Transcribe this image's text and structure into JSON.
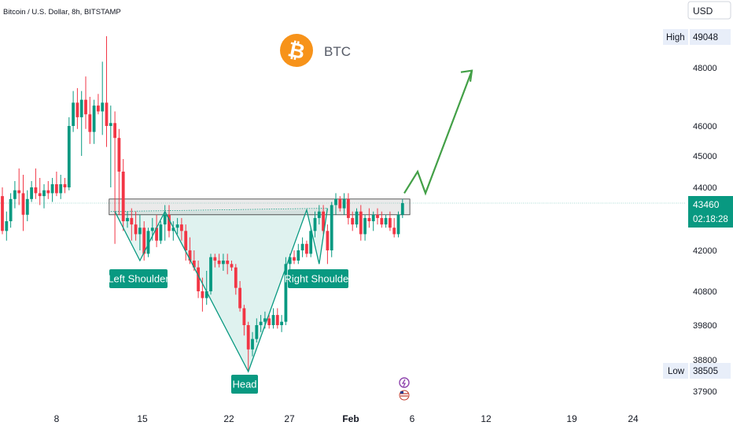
{
  "chart_data": {
    "type": "candlestick",
    "title": "Bitcoin / U.S. Dollar, 8h, BITSTAMP",
    "symbol": "BTC",
    "currency": "USD",
    "y_ticks": [
      48000,
      46000,
      45000,
      44000,
      42000,
      40800,
      39800,
      38800,
      37900
    ],
    "x_ticks": [
      "8",
      "15",
      "22",
      "27",
      "Feb",
      "6",
      "12",
      "19",
      "24"
    ],
    "high": {
      "label": "High",
      "value": "49048"
    },
    "low": {
      "label": "Low",
      "value": "38505"
    },
    "last_price": "43460",
    "countdown": "02:18:28",
    "pattern_labels": {
      "left": "Left Shoulder",
      "head": "Head",
      "right": "Right Shoulder"
    },
    "colors": {
      "up": "#089981",
      "down": "#f23645",
      "accent": "#43a047",
      "bitcoin": "#f7931a",
      "label_bg": "#089981"
    },
    "candles": [
      [
        43700,
        44000,
        42500,
        42600
      ],
      [
        42600,
        43200,
        42300,
        42900
      ],
      [
        42900,
        43800,
        42700,
        43600
      ],
      [
        43600,
        44200,
        43300,
        43900
      ],
      [
        43900,
        44600,
        43400,
        43800
      ],
      [
        43800,
        44400,
        42600,
        43100
      ],
      [
        43100,
        43900,
        42900,
        43600
      ],
      [
        43600,
        44200,
        43500,
        44000
      ],
      [
        44000,
        44600,
        43600,
        43800
      ],
      [
        43800,
        44300,
        43400,
        43700
      ],
      [
        43700,
        44100,
        43300,
        43900
      ],
      [
        43900,
        44200,
        43600,
        43800
      ],
      [
        43800,
        44300,
        43500,
        44100
      ],
      [
        44100,
        44500,
        43700,
        43800
      ],
      [
        43800,
        44400,
        43600,
        44100
      ],
      [
        44100,
        44300,
        43800,
        44000
      ],
      [
        44000,
        46300,
        43900,
        46000
      ],
      [
        46000,
        47200,
        45800,
        46800
      ],
      [
        46800,
        47300,
        45900,
        46300
      ],
      [
        46300,
        47200,
        45000,
        46900
      ],
      [
        46900,
        47700,
        45900,
        46400
      ],
      [
        46400,
        47000,
        45400,
        45800
      ],
      [
        45800,
        46900,
        45400,
        46700
      ],
      [
        46700,
        47100,
        46400,
        46500
      ],
      [
        46500,
        48200,
        45700,
        46800
      ],
      [
        46800,
        49048,
        45300,
        46000
      ],
      [
        46000,
        46700,
        44000,
        46100
      ],
      [
        46100,
        46500,
        42200,
        45600
      ],
      [
        45600,
        45900,
        43100,
        44500
      ],
      [
        44500,
        44900,
        42600,
        42900
      ],
      [
        42900,
        43200,
        42700,
        43000
      ],
      [
        43000,
        43300,
        42300,
        42800
      ],
      [
        42800,
        43200,
        42300,
        42500
      ],
      [
        42500,
        43100,
        42000,
        42700
      ],
      [
        42700,
        42900,
        41700,
        41900
      ],
      [
        41900,
        42700,
        41800,
        42600
      ],
      [
        42600,
        43000,
        42300,
        42700
      ],
      [
        42700,
        43100,
        42100,
        42300
      ],
      [
        42300,
        42900,
        42200,
        42800
      ],
      [
        42800,
        43400,
        42300,
        43100
      ],
      [
        43100,
        43400,
        42400,
        42600
      ],
      [
        42600,
        42900,
        42300,
        42700
      ],
      [
        42700,
        43000,
        42500,
        42800
      ],
      [
        42800,
        43000,
        42300,
        42600
      ],
      [
        42600,
        42800,
        41700,
        42000
      ],
      [
        42000,
        42400,
        41600,
        41700
      ],
      [
        41700,
        42000,
        41400,
        41500
      ],
      [
        41500,
        41700,
        40600,
        40800
      ],
      [
        40800,
        41200,
        40200,
        40600
      ],
      [
        40600,
        41400,
        40400,
        40800
      ],
      [
        40800,
        41900,
        40700,
        41800
      ],
      [
        41800,
        41900,
        41500,
        41700
      ],
      [
        41700,
        41900,
        41500,
        41600
      ],
      [
        41600,
        41900,
        41400,
        41700
      ],
      [
        41700,
        41900,
        41300,
        41600
      ],
      [
        41600,
        41700,
        41400,
        41500
      ],
      [
        41500,
        41600,
        40700,
        40900
      ],
      [
        40900,
        41100,
        40200,
        40300
      ],
      [
        40300,
        40400,
        39500,
        39800
      ],
      [
        39800,
        39900,
        38505,
        39100
      ],
      [
        39100,
        39600,
        38900,
        39400
      ],
      [
        39400,
        40000,
        39300,
        39800
      ],
      [
        39800,
        40100,
        39600,
        39900
      ],
      [
        39900,
        40200,
        39700,
        40000
      ],
      [
        40000,
        40100,
        39700,
        39800
      ],
      [
        39800,
        40300,
        39700,
        40100
      ],
      [
        40100,
        40300,
        39700,
        39800
      ],
      [
        39800,
        40100,
        39600,
        39900
      ],
      [
        39900,
        41800,
        39800,
        41600
      ],
      [
        41600,
        41900,
        41300,
        41800
      ],
      [
        41800,
        42000,
        41600,
        41700
      ],
      [
        41700,
        42200,
        41600,
        42000
      ],
      [
        42000,
        42400,
        41800,
        42200
      ],
      [
        42200,
        42300,
        41800,
        41900
      ],
      [
        41900,
        42700,
        41800,
        42600
      ],
      [
        42600,
        43200,
        42400,
        43000
      ],
      [
        43000,
        43400,
        42800,
        43200
      ],
      [
        43200,
        43400,
        42500,
        42600
      ],
      [
        42600,
        42800,
        41600,
        42000
      ],
      [
        42000,
        43500,
        41800,
        43400
      ],
      [
        43400,
        43800,
        43100,
        43600
      ],
      [
        43600,
        43700,
        43200,
        43300
      ],
      [
        43300,
        43800,
        43100,
        43600
      ],
      [
        43600,
        43800,
        42800,
        43000
      ],
      [
        43000,
        43200,
        42600,
        42800
      ],
      [
        42800,
        43300,
        42700,
        43200
      ],
      [
        43200,
        43400,
        42300,
        42500
      ],
      [
        42500,
        43100,
        42300,
        43000
      ],
      [
        43000,
        43300,
        42700,
        42900
      ],
      [
        42900,
        43200,
        42600,
        43100
      ],
      [
        43100,
        43300,
        42800,
        43000
      ],
      [
        43000,
        43200,
        42700,
        42800
      ],
      [
        42800,
        43100,
        42700,
        43000
      ],
      [
        43000,
        43200,
        42600,
        42700
      ],
      [
        42700,
        43000,
        42400,
        42500
      ],
      [
        42500,
        43200,
        42400,
        43100
      ],
      [
        43100,
        43600,
        43000,
        43460
      ]
    ],
    "projection": [
      [
        43800,
        0
      ],
      [
        44500,
        0
      ],
      [
        43800,
        0
      ],
      [
        47900,
        0
      ]
    ]
  }
}
